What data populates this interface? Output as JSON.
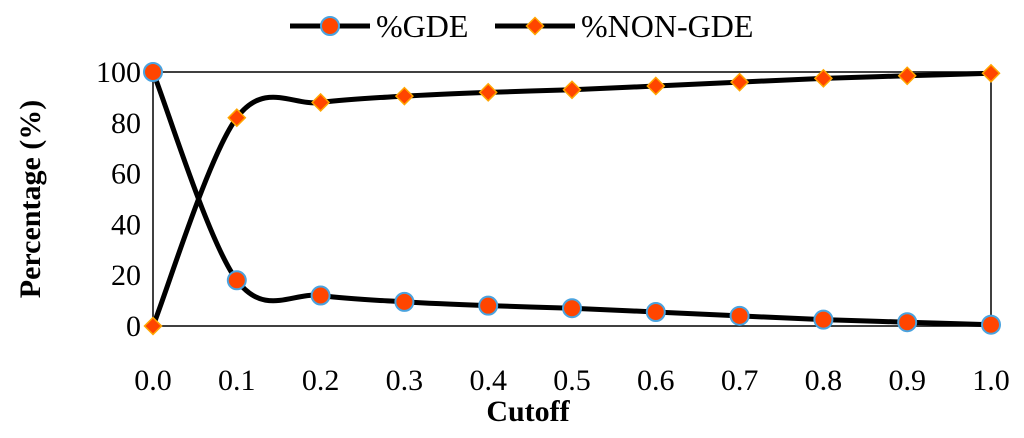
{
  "chart_data": {
    "type": "line",
    "xlabel": "Cutoff",
    "ylabel": "Percentage (%)",
    "xlim": [
      0.0,
      1.0
    ],
    "ylim": [
      0,
      100
    ],
    "x": [
      0.0,
      0.1,
      0.2,
      0.3,
      0.4,
      0.5,
      0.6,
      0.7,
      0.8,
      0.9,
      1.0
    ],
    "x_ticks": [
      "0.0",
      "0.1",
      "0.2",
      "0.3",
      "0.4",
      "0.5",
      "0.6",
      "0.7",
      "0.8",
      "0.9",
      "1.0"
    ],
    "y_ticks": [
      "0",
      "20",
      "40",
      "60",
      "80",
      "100"
    ],
    "legend_position": "top-center",
    "grid": false,
    "series": [
      {
        "name": "%GDE",
        "marker": "circle",
        "line_color": "#000000",
        "marker_fill": "#ff4500",
        "marker_stroke": "#4aa3df",
        "values": [
          100,
          18,
          12,
          9.5,
          8,
          7,
          5.5,
          4,
          2.5,
          1.5,
          0.5
        ]
      },
      {
        "name": "%NON-GDE",
        "marker": "diamond",
        "line_color": "#000000",
        "marker_fill": "#ff4500",
        "marker_stroke": "#ffa500",
        "values": [
          0,
          82,
          88,
          90.5,
          92,
          93,
          94.5,
          96,
          97.5,
          98.5,
          99.5
        ]
      }
    ]
  }
}
